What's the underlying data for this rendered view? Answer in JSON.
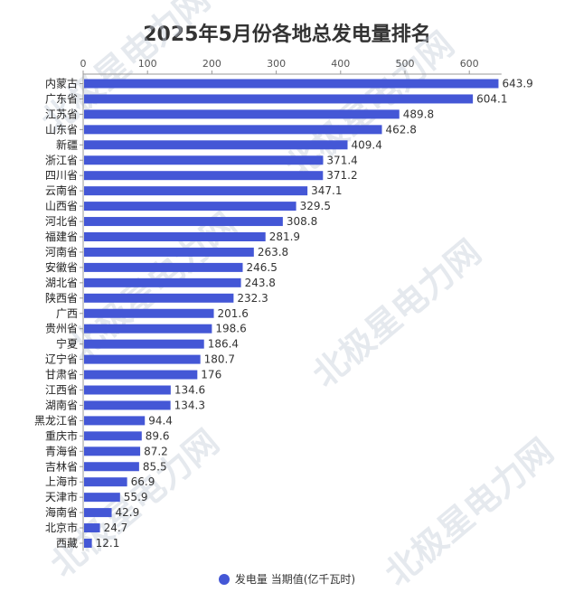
{
  "title": "2025年5月份各地总发电量排名",
  "legend": {
    "label": "发电量 当期值(亿千瓦时)"
  },
  "watermark": "北极星电力网",
  "colors": {
    "bar": "#4457d6",
    "axis": "#999999",
    "background": "#ffffff"
  },
  "chart_data": {
    "type": "bar",
    "orientation": "horizontal",
    "title": "2025年5月份各地总发电量排名",
    "xlim": [
      0,
      650
    ],
    "x_ticks": [
      0,
      100,
      200,
      300,
      400,
      500,
      600
    ],
    "x_axis_position": "top",
    "grid": false,
    "legend_position": "bottom-center",
    "categories": [
      "内蒙古",
      "广东省",
      "江苏省",
      "山东省",
      "新疆",
      "浙江省",
      "四川省",
      "云南省",
      "山西省",
      "河北省",
      "福建省",
      "河南省",
      "安徽省",
      "湖北省",
      "陕西省",
      "广西",
      "贵州省",
      "宁夏",
      "辽宁省",
      "甘肃省",
      "江西省",
      "湖南省",
      "黑龙江省",
      "重庆市",
      "青海省",
      "吉林省",
      "上海市",
      "天津市",
      "海南省",
      "北京市",
      "西藏"
    ],
    "series": [
      {
        "name": "发电量 当期值(亿千瓦时)",
        "values": [
          643.9,
          604.1,
          489.8,
          462.8,
          409.4,
          371.4,
          371.2,
          347.1,
          329.5,
          308.8,
          281.9,
          263.8,
          246.5,
          243.8,
          232.3,
          201.6,
          198.6,
          186.4,
          180.7,
          176,
          134.6,
          134.3,
          94.4,
          89.6,
          87.2,
          85.5,
          66.9,
          55.9,
          42.9,
          24.7,
          12.1
        ]
      }
    ]
  }
}
